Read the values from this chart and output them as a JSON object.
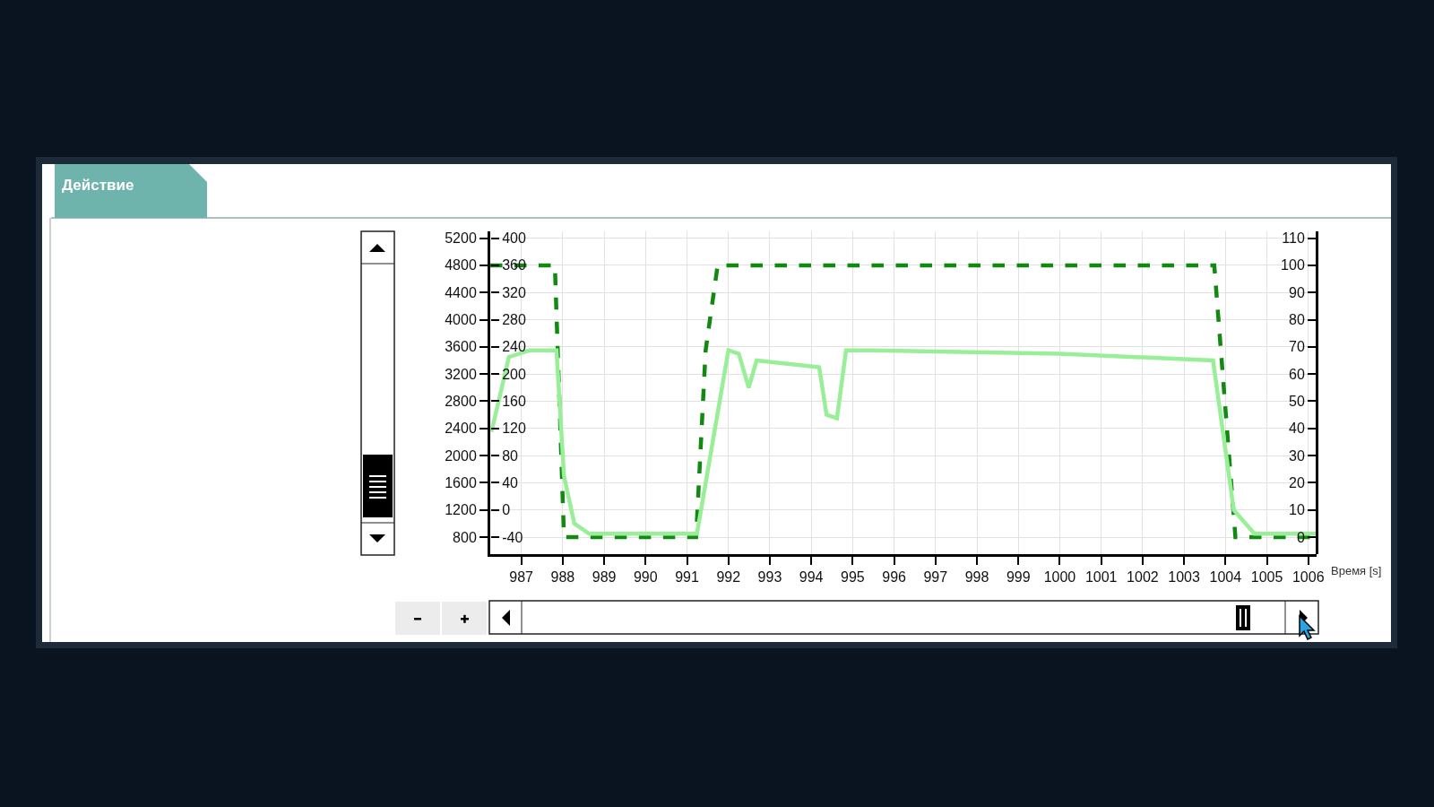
{
  "chart_data": {
    "type": "line",
    "annotations": [
      "Действие"
    ],
    "xlabel": "Время [s]",
    "xlim": [
      986.25,
      1006.2
    ],
    "xticks": [
      987,
      988,
      989,
      990,
      991,
      992,
      993,
      994,
      995,
      996,
      997,
      998,
      999,
      1000,
      1001,
      1002,
      1003,
      1004,
      1005,
      1006
    ],
    "ylim": [
      550,
      5300
    ],
    "yticks": [
      800,
      1200,
      1600,
      2000,
      2400,
      2800,
      3200,
      3600,
      4000,
      4400,
      4800,
      5200
    ],
    "y2lim": [
      -65,
      410
    ],
    "y2ticks": [
      -40,
      0,
      40,
      80,
      120,
      160,
      200,
      240,
      280,
      320,
      360,
      400
    ],
    "y3lim": [
      -6.25,
      112.5
    ],
    "y3ticks": [
      0,
      10,
      20,
      30,
      40,
      50,
      60,
      70,
      80,
      90,
      100,
      110
    ],
    "grid": true,
    "marker": "none",
    "series": [
      {
        "color": "#128a12",
        "line_style": "dashed",
        "x": [
          986.25,
          987.81,
          988.03,
          991.22,
          991.45,
          991.74,
          1003.73,
          1004.24,
          1006.2
        ],
        "values": [
          4800,
          4800,
          800,
          800,
          3550,
          4800,
          4800,
          800,
          800
        ]
      },
      {
        "color": "#98ef98",
        "line_style": "solid",
        "x": [
          986.28,
          986.7,
          987.2,
          987.85,
          988.03,
          988.28,
          988.64,
          991.24,
          992.0,
          992.25,
          992.49,
          992.68,
          994.19,
          994.37,
          994.62,
          994.84,
          995.5,
          1000,
          1003.7,
          1004.2,
          1004.7,
          1006.2
        ],
        "values": [
          2350,
          3450,
          3550,
          3550,
          1700,
          1000,
          850,
          850,
          3550,
          3500,
          3000,
          3400,
          3300,
          2600,
          2550,
          3550,
          3550,
          3500,
          3400,
          1200,
          850,
          850
        ]
      }
    ]
  }
}
